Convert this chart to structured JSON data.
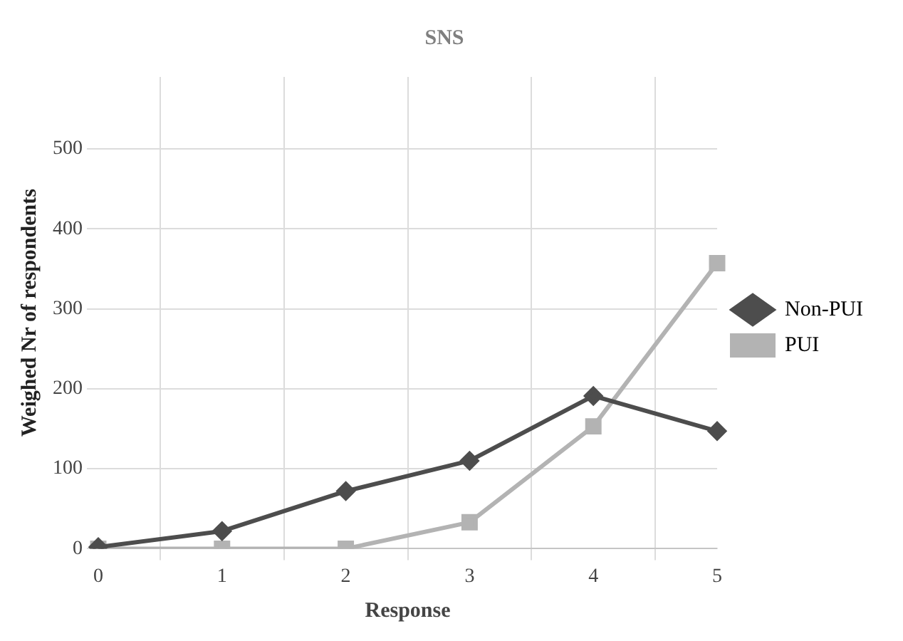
{
  "chart_data": {
    "type": "line",
    "title": "SNS",
    "xlabel": "Response",
    "ylabel": "Weighed Nr of respondents",
    "categories": [
      "0",
      "1",
      "2",
      "3",
      "4",
      "5"
    ],
    "series": [
      {
        "name": "Non-PUI",
        "color": "#4d4d4d",
        "marker": "diamond",
        "values": [
          2,
          22,
          72,
          110,
          191,
          147
        ]
      },
      {
        "name": "PUI",
        "color": "#b3b3b3",
        "marker": "square",
        "values": [
          0,
          0,
          0,
          33,
          153,
          357
        ]
      }
    ],
    "ylim": [
      0,
      590
    ],
    "yticks": [
      0,
      100,
      200,
      300,
      400,
      500
    ],
    "grid": true,
    "legend": "right",
    "line_style": "solid"
  }
}
